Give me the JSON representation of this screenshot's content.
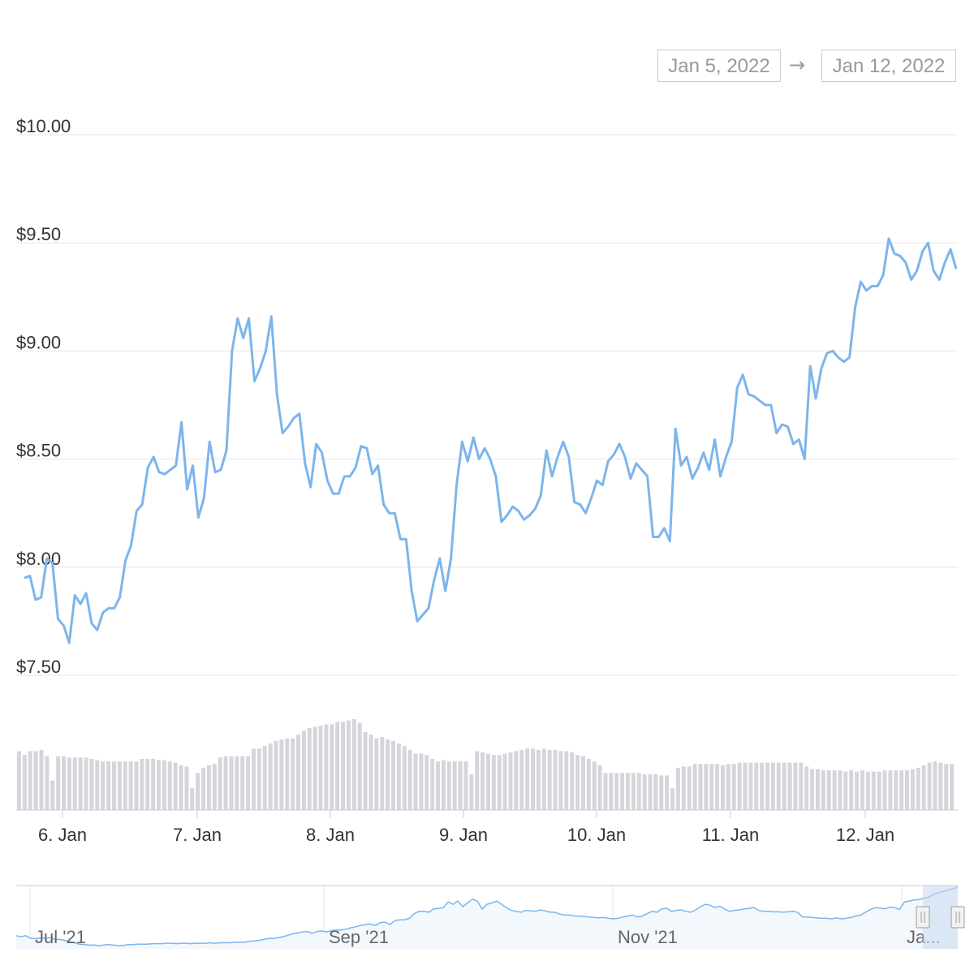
{
  "range_selector": {
    "from": "Jan 5, 2022",
    "arrow": "→",
    "to": "Jan 12, 2022"
  },
  "colors": {
    "line": "#7cb5ec",
    "volume": "#d4d6dc",
    "grid": "#e6e6e6",
    "navigator_fill": "#f3f8fd",
    "navigator_mask": "#c6d8ef"
  },
  "chart_data": {
    "type": "line",
    "title": "",
    "xlabel": "",
    "ylabel": "",
    "y_ticks": [
      "$7.50",
      "$8.00",
      "$8.50",
      "$9.00",
      "$9.50",
      "$10.00"
    ],
    "y_tick_values": [
      7.5,
      8.0,
      8.5,
      9.0,
      9.5,
      10.0
    ],
    "ylim": [
      7.5,
      10.0
    ],
    "x_ticks": [
      "6. Jan",
      "7. Jan",
      "8. Jan",
      "9. Jan",
      "10. Jan",
      "11. Jan",
      "12. Jan"
    ],
    "x_tick_days": [
      6,
      7,
      8,
      9,
      10,
      11,
      12
    ],
    "xlim": [
      5.66,
      12.7
    ],
    "series": [
      {
        "values": [
          7.95,
          7.96,
          7.85,
          7.86,
          8.04,
          8.02,
          7.76,
          7.73,
          7.65,
          7.87,
          7.83,
          7.88,
          7.74,
          7.71,
          7.79,
          7.81,
          7.81,
          7.86,
          8.03,
          8.1,
          8.26,
          8.29,
          8.46,
          8.51,
          8.44,
          8.43,
          8.45,
          8.47,
          8.67,
          8.36,
          8.47,
          8.23,
          8.32,
          8.58,
          8.44,
          8.45,
          8.54,
          9.0,
          9.15,
          9.06,
          9.15,
          8.86,
          8.92,
          9.0,
          9.16,
          8.8,
          8.62,
          8.65,
          8.69,
          8.71,
          8.48,
          8.37,
          8.57,
          8.53,
          8.4,
          8.34,
          8.34,
          8.42,
          8.42,
          8.46,
          8.56,
          8.55,
          8.43,
          8.47,
          8.29,
          8.25,
          8.25,
          8.13,
          8.13,
          7.89,
          7.75,
          7.78,
          7.81,
          7.94,
          8.04,
          7.89,
          8.04,
          8.38,
          8.58,
          8.49,
          8.6,
          8.5,
          8.55,
          8.5,
          8.42,
          8.21,
          8.24,
          8.28,
          8.26,
          8.22,
          8.24,
          8.27,
          8.33,
          8.54,
          8.42,
          8.51,
          8.58,
          8.51,
          8.3,
          8.29,
          8.25,
          8.32,
          8.4,
          8.38,
          8.49,
          8.52,
          8.57,
          8.51,
          8.41,
          8.48,
          8.45,
          8.42,
          8.14,
          8.14,
          8.18,
          8.12,
          8.64,
          8.47,
          8.51,
          8.41,
          8.46,
          8.53,
          8.45,
          8.59,
          8.42,
          8.51,
          8.58,
          8.83,
          8.89,
          8.8,
          8.79,
          8.77,
          8.75,
          8.75,
          8.62,
          8.66,
          8.65,
          8.57,
          8.59,
          8.5,
          8.93,
          8.78,
          8.92,
          8.99,
          9.0,
          8.97,
          8.95,
          8.97,
          9.2,
          9.32,
          9.28,
          9.3,
          9.3,
          9.35,
          9.52,
          9.45,
          9.44,
          9.41,
          9.33,
          9.37,
          9.46,
          9.5,
          9.37,
          9.33,
          9.41,
          9.47,
          9.38
        ]
      }
    ],
    "volume": {
      "values": [
        0.46,
        0.43,
        0.46,
        0.46,
        0.47,
        0.42,
        0.23,
        0.42,
        0.42,
        0.41,
        0.41,
        0.41,
        0.41,
        0.4,
        0.39,
        0.38,
        0.38,
        0.38,
        0.38,
        0.38,
        0.38,
        0.38,
        0.4,
        0.4,
        0.4,
        0.39,
        0.39,
        0.38,
        0.37,
        0.35,
        0.34,
        0.17,
        0.29,
        0.33,
        0.35,
        0.36,
        0.41,
        0.42,
        0.42,
        0.42,
        0.42,
        0.42,
        0.48,
        0.48,
        0.5,
        0.52,
        0.54,
        0.55,
        0.56,
        0.56,
        0.59,
        0.62,
        0.64,
        0.65,
        0.66,
        0.67,
        0.67,
        0.69,
        0.69,
        0.7,
        0.71,
        0.68,
        0.61,
        0.59,
        0.56,
        0.57,
        0.55,
        0.54,
        0.52,
        0.5,
        0.47,
        0.44,
        0.44,
        0.43,
        0.4,
        0.38,
        0.39,
        0.38,
        0.38,
        0.38,
        0.38,
        0.28,
        0.46,
        0.45,
        0.44,
        0.43,
        0.43,
        0.44,
        0.45,
        0.46,
        0.47,
        0.48,
        0.48,
        0.47,
        0.48,
        0.47,
        0.47,
        0.46,
        0.46,
        0.45,
        0.43,
        0.42,
        0.4,
        0.38,
        0.35,
        0.29,
        0.29,
        0.29,
        0.29,
        0.29,
        0.29,
        0.29,
        0.28,
        0.28,
        0.28,
        0.27,
        0.27,
        0.17,
        0.33,
        0.34,
        0.34,
        0.36,
        0.36,
        0.36,
        0.36,
        0.36,
        0.35,
        0.36,
        0.36,
        0.37,
        0.37,
        0.37,
        0.37,
        0.37,
        0.37,
        0.37,
        0.37,
        0.37,
        0.37,
        0.37,
        0.37,
        0.34,
        0.32,
        0.32,
        0.31,
        0.31,
        0.31,
        0.31,
        0.3,
        0.31,
        0.3,
        0.31,
        0.3,
        0.3,
        0.3,
        0.31,
        0.31,
        0.31,
        0.31,
        0.31,
        0.32,
        0.33,
        0.35,
        0.37,
        0.38,
        0.37,
        0.36,
        0.36
      ]
    },
    "navigator": {
      "x_ticks": [
        "Jul '21",
        "Sep '21",
        "Nov '21",
        "Ja..."
      ],
      "values": [
        0.78,
        0.76,
        0.78,
        0.72,
        0.72,
        0.73,
        0.73,
        0.74,
        0.7,
        0.7,
        0.68,
        0.65,
        0.63,
        0.6,
        0.59,
        0.58,
        0.58,
        0.57,
        0.58,
        0.59,
        0.58,
        0.57,
        0.57,
        0.59,
        0.59,
        0.6,
        0.6,
        0.6,
        0.61,
        0.61,
        0.61,
        0.62,
        0.62,
        0.61,
        0.62,
        0.62,
        0.61,
        0.62,
        0.62,
        0.62,
        0.63,
        0.62,
        0.63,
        0.63,
        0.63,
        0.64,
        0.64,
        0.64,
        0.66,
        0.67,
        0.68,
        0.7,
        0.72,
        0.72,
        0.74,
        0.76,
        0.79,
        0.82,
        0.84,
        0.86,
        0.87,
        0.83,
        0.87,
        0.88,
        0.86,
        0.89,
        0.9,
        0.9,
        0.92,
        0.95,
        0.97,
        1.0,
        1.02,
        1.03,
        1.0,
        1.06,
        1.07,
        1.02,
        1.1,
        1.12,
        1.12,
        1.15,
        1.25,
        1.3,
        1.3,
        1.28,
        1.35,
        1.36,
        1.38,
        1.5,
        1.45,
        1.52,
        1.4,
        1.48,
        1.56,
        1.52,
        1.35,
        1.45,
        1.48,
        1.52,
        1.45,
        1.38,
        1.32,
        1.3,
        1.28,
        1.32,
        1.31,
        1.3,
        1.33,
        1.31,
        1.28,
        1.28,
        1.24,
        1.22,
        1.22,
        1.2,
        1.2,
        1.19,
        1.18,
        1.17,
        1.16,
        1.17,
        1.15,
        1.14,
        1.15,
        1.18,
        1.2,
        1.22,
        1.18,
        1.2,
        1.25,
        1.3,
        1.28,
        1.35,
        1.37,
        1.3,
        1.32,
        1.33,
        1.3,
        1.28,
        1.33,
        1.4,
        1.45,
        1.43,
        1.38,
        1.41,
        1.35,
        1.3,
        1.32,
        1.33,
        1.35,
        1.36,
        1.38,
        1.32,
        1.3,
        1.3,
        1.29,
        1.29,
        1.28,
        1.29,
        1.3,
        1.28,
        1.18,
        1.18,
        1.17,
        1.16,
        1.15,
        1.15,
        1.14,
        1.16,
        1.14,
        1.15,
        1.17,
        1.2,
        1.22,
        1.28,
        1.34,
        1.38,
        1.37,
        1.35,
        1.39,
        1.38,
        1.34,
        1.5,
        1.52,
        1.54,
        1.55,
        1.58,
        1.6,
        1.66,
        1.7,
        1.72,
        1.76,
        1.78,
        1.82
      ]
    }
  }
}
